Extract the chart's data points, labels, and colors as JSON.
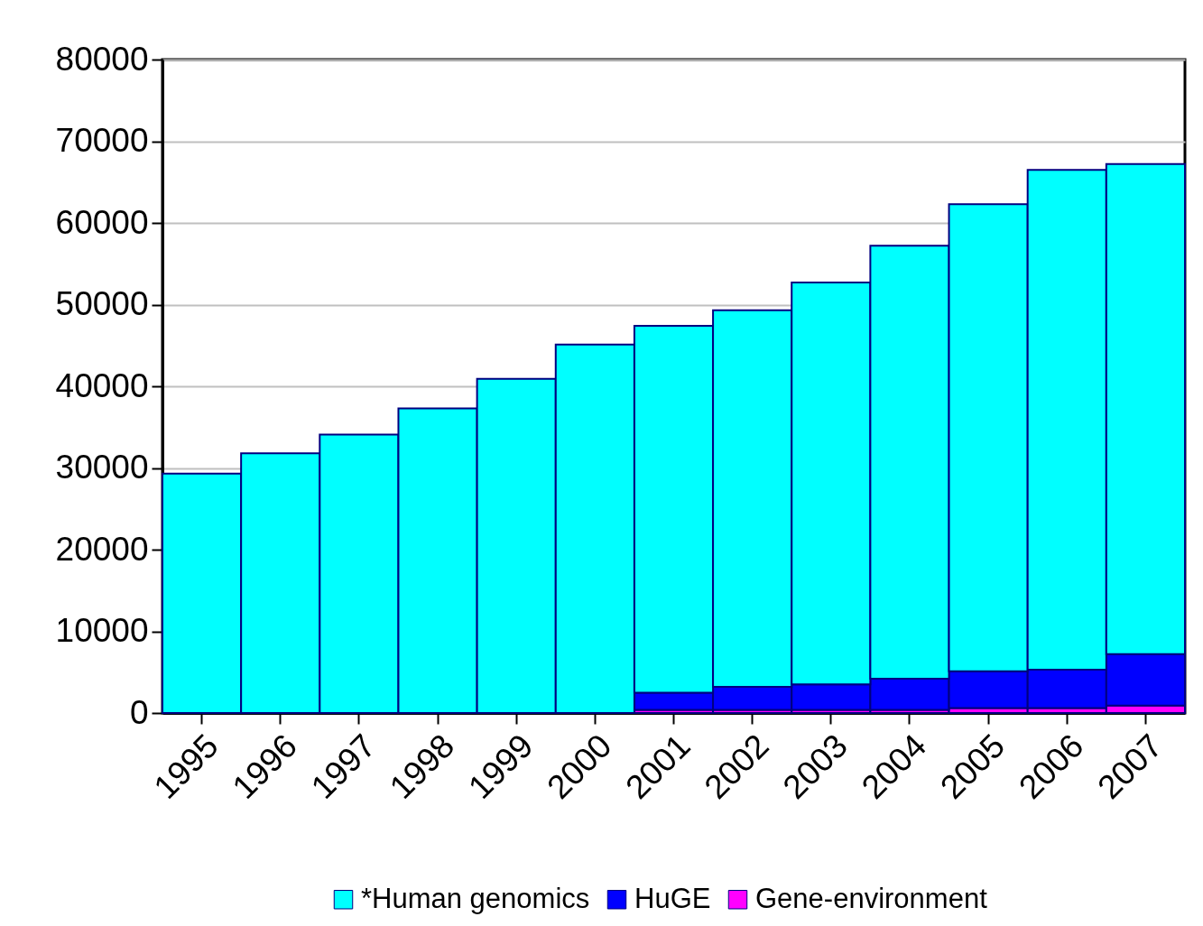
{
  "chart_data": {
    "type": "bar",
    "stacked": true,
    "categories": [
      "1995",
      "1996",
      "1997",
      "1998",
      "1999",
      "2000",
      "2001",
      "2002",
      "2003",
      "2004",
      "2005",
      "2006",
      "2007"
    ],
    "series": [
      {
        "name": "Gene-environment",
        "color": "#ff00ff",
        "values": [
          null,
          null,
          null,
          null,
          null,
          null,
          400,
          400,
          400,
          400,
          600,
          600,
          900
        ]
      },
      {
        "name": "HuGE",
        "color": "#0000ff",
        "values": [
          null,
          null,
          null,
          null,
          null,
          null,
          2100,
          2800,
          3100,
          3800,
          4500,
          4700,
          6300
        ]
      },
      {
        "name": "*Human genomics",
        "color": "#00ffff",
        "values": [
          29300,
          31800,
          34100,
          37300,
          40900,
          45100,
          44900,
          46100,
          49200,
          53000,
          57200,
          61200,
          60000
        ]
      }
    ],
    "ylim": [
      0,
      80000
    ],
    "yticks": [
      0,
      10000,
      20000,
      30000,
      40000,
      50000,
      60000,
      70000,
      80000
    ],
    "grid": "y",
    "legend": "bottom"
  }
}
